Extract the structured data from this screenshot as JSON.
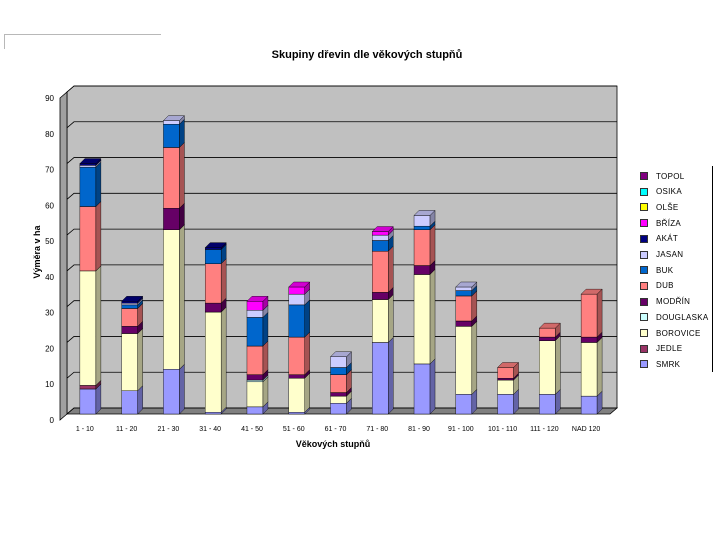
{
  "chart_data": {
    "type": "bar",
    "stacked": true,
    "three_d": true,
    "title": "Skupiny dřevin dle věkových stupňů",
    "xlabel": "Věkových stupňů",
    "ylabel": "Výměra v ha",
    "ylim": [
      0,
      90
    ],
    "yticks": [
      0,
      10,
      20,
      30,
      40,
      50,
      60,
      70,
      80,
      90
    ],
    "grid": true,
    "legend_position": "right",
    "categories": [
      "1 - 10",
      "11 - 20",
      "21 - 30",
      "31 - 40",
      "41 - 50",
      "51 - 60",
      "61 - 70",
      "71 - 80",
      "81 - 90",
      "91 - 100",
      "101 - 110",
      "111 - 120",
      "NAD 120"
    ],
    "series": [
      {
        "name": "SMRK",
        "color": "#9999ff",
        "values": [
          7,
          6.5,
          12.5,
          0.5,
          2,
          0.5,
          3,
          20,
          14,
          5.5,
          5.5,
          5.5,
          5
        ]
      },
      {
        "name": "JEDLE",
        "color": "#993366",
        "values": [
          1,
          0,
          0,
          0,
          0,
          0,
          0,
          0,
          0,
          0,
          0,
          0,
          0
        ]
      },
      {
        "name": "BOROVICE",
        "color": "#ffffcc",
        "values": [
          32,
          16,
          39,
          28,
          7,
          9.5,
          2,
          12,
          25,
          19,
          4,
          15,
          15
        ]
      },
      {
        "name": "DOUGLASKA",
        "color": "#ccffff",
        "values": [
          0,
          0,
          0,
          0,
          0.5,
          0,
          0,
          0,
          0,
          0,
          0,
          0,
          0
        ]
      },
      {
        "name": "MODŘÍN",
        "color": "#660066",
        "values": [
          0,
          2,
          6,
          2.5,
          1.5,
          1,
          1,
          2,
          2.5,
          1.5,
          0.5,
          1,
          1.5
        ]
      },
      {
        "name": "DUB",
        "color": "#ff8080",
        "values": [
          18,
          5,
          17,
          11,
          8,
          10.5,
          5,
          11.5,
          10,
          7,
          3,
          2.5,
          12
        ]
      },
      {
        "name": "BUK",
        "color": "#0066cc",
        "values": [
          11,
          1,
          6.5,
          4,
          8,
          9,
          2,
          3,
          1,
          1.5,
          0,
          0,
          0
        ]
      },
      {
        "name": "JASAN",
        "color": "#ccccff",
        "values": [
          0.5,
          0.5,
          1,
          0,
          2,
          3,
          3,
          1.5,
          3,
          1,
          0,
          0,
          0
        ]
      },
      {
        "name": "AKÁT",
        "color": "#000080",
        "values": [
          0.5,
          0.5,
          0,
          0.5,
          0,
          0,
          0,
          0,
          0,
          0,
          0,
          0,
          0
        ]
      },
      {
        "name": "BŘÍZA",
        "color": "#ff00ff",
        "values": [
          0,
          0,
          0,
          0,
          2.5,
          2,
          0,
          1,
          0,
          0,
          0,
          0,
          0
        ]
      },
      {
        "name": "OLŠE",
        "color": "#ffff00",
        "values": [
          0,
          0,
          0,
          0,
          0,
          0,
          0,
          0,
          0,
          0,
          0,
          0,
          0
        ]
      },
      {
        "name": "OSIKA",
        "color": "#00ffff",
        "values": [
          0,
          0,
          0,
          0,
          0,
          0,
          0,
          0,
          0,
          0,
          0,
          0,
          0
        ]
      },
      {
        "name": "TOPOL",
        "color": "#800080",
        "values": [
          0,
          0,
          0,
          0,
          0,
          0,
          0,
          0,
          0,
          0,
          0,
          0,
          0
        ]
      }
    ]
  }
}
